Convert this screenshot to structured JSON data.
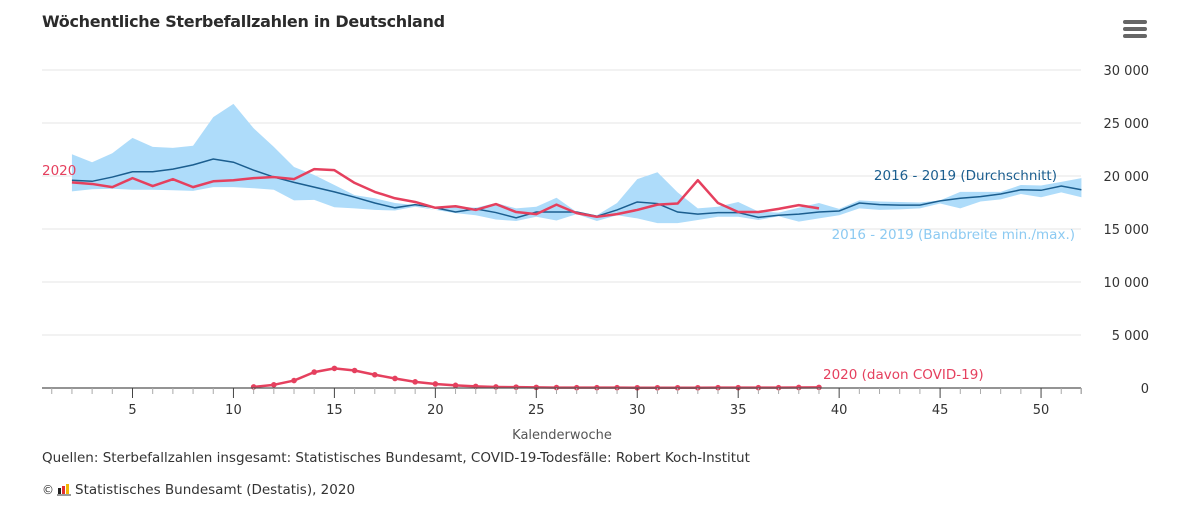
{
  "header": {
    "title": "Wöchentliche Sterbefallzahlen in Deutschland",
    "menu_icon": "hamburger-menu-icon"
  },
  "footer": {
    "source": "Quellen: Sterbefallzahlen insgesamt: Statistisches Bundesamt, COVID-19-Todesfälle: Robert Koch-Institut",
    "copyright_symbol": "©",
    "logo_icon": "destatis-logo-icon",
    "credit": "Statistisches Bundesamt (Destatis), 2020"
  },
  "chart_data": {
    "type": "line",
    "title": "Wöchentliche Sterbefallzahlen in Deutschland",
    "xlabel": "Kalenderwoche",
    "ylabel": "",
    "xlim": [
      0.5,
      52
    ],
    "ylim": [
      0,
      30000
    ],
    "x_ticks": [
      5,
      10,
      15,
      20,
      25,
      30,
      35,
      40,
      45,
      50
    ],
    "y_ticks": [
      0,
      5000,
      10000,
      15000,
      20000,
      25000,
      30000
    ],
    "y_tick_labels": [
      "0",
      "5 000",
      "10 000",
      "15 000",
      "20 000",
      "25 000",
      "30 000"
    ],
    "grid": "horizontal",
    "legend": "inline-labels",
    "colors": {
      "range": "#aedcfa",
      "range_label": "#8ccaf2",
      "average": "#1b5e8f",
      "y2020": "#e5405e",
      "axis": "#555555",
      "grid": "#e6e6e6"
    },
    "series": [
      {
        "name": "2016 - 2019 (Bandbreite min./max.)",
        "kind": "range",
        "x_start": 2,
        "min": [
          18550,
          18750,
          18800,
          18700,
          18700,
          18650,
          18600,
          18950,
          18950,
          18850,
          18700,
          17700,
          17750,
          17050,
          16950,
          16800,
          16750,
          17100,
          16800,
          16500,
          16300,
          15900,
          15750,
          16150,
          15800,
          16400,
          15750,
          16300,
          16000,
          15550,
          15550,
          15850,
          16150,
          16150,
          15850,
          16200,
          15700,
          16000,
          16300,
          16950,
          16800,
          16850,
          16950,
          17400,
          16950,
          17600,
          17800,
          18300,
          18000,
          18450,
          18000
        ],
        "max": [
          22050,
          21300,
          22150,
          23600,
          22750,
          22650,
          22850,
          25550,
          26800,
          24500,
          22750,
          20850,
          20100,
          19150,
          18200,
          17900,
          17450,
          17250,
          16800,
          17150,
          17000,
          17450,
          16950,
          17100,
          17950,
          16600,
          16300,
          17450,
          19700,
          20350,
          18450,
          16950,
          17100,
          17550,
          16650,
          16550,
          17000,
          17450,
          16900,
          17700,
          17600,
          17550,
          17500,
          17700,
          18500,
          18500,
          18500,
          19150,
          19100,
          19450,
          19800
        ]
      },
      {
        "name": "2016 - 2019 (Durchschnitt)",
        "kind": "line",
        "x_start": 2,
        "values": [
          19600,
          19500,
          19900,
          20400,
          20400,
          20650,
          21050,
          21600,
          21300,
          20550,
          19900,
          19400,
          18950,
          18500,
          18000,
          17450,
          17000,
          17300,
          17000,
          16600,
          16900,
          16550,
          16050,
          16600,
          16600,
          16600,
          16200,
          16800,
          17550,
          17400,
          16600,
          16400,
          16550,
          16550,
          16100,
          16300,
          16400,
          16600,
          16700,
          17450,
          17300,
          17250,
          17250,
          17650,
          17900,
          18050,
          18300,
          18700,
          18650,
          19050,
          18700
        ]
      },
      {
        "name": "2020",
        "kind": "line",
        "x_start": 2,
        "values": [
          19400,
          19250,
          18950,
          19800,
          19050,
          19700,
          18950,
          19500,
          19600,
          19800,
          19900,
          19700,
          20650,
          20550,
          19350,
          18500,
          17900,
          17550,
          17000,
          17150,
          16800,
          17350,
          16600,
          16400,
          17300,
          16500,
          16150,
          16400,
          16800,
          17300,
          17400,
          19600,
          17450,
          16600,
          16600,
          16900,
          17250,
          16950
        ]
      },
      {
        "name": "2020 (davon COVID-19)",
        "kind": "line-markers",
        "x_start": 11,
        "values": [
          100,
          300,
          700,
          1500,
          1850,
          1650,
          1250,
          900,
          580,
          380,
          250,
          150,
          100,
          80,
          60,
          40,
          30,
          30,
          30,
          20,
          20,
          20,
          20,
          30,
          30,
          30,
          30,
          50,
          60
        ]
      }
    ],
    "annotations": [
      {
        "text": "2020",
        "series": "2020",
        "position": "left-start"
      },
      {
        "text": "2016 - 2019 (Durchschnitt)",
        "series": "2016 - 2019 (Durchschnitt)",
        "position": "above-end"
      },
      {
        "text": "2016 - 2019 (Bandbreite min./max.)",
        "series": "2016 - 2019 (Bandbreite min./max.)",
        "position": "below-end"
      },
      {
        "text": "2020 (davon COVID-19)",
        "series": "2020 (davon COVID-19)",
        "position": "right-end"
      }
    ]
  }
}
